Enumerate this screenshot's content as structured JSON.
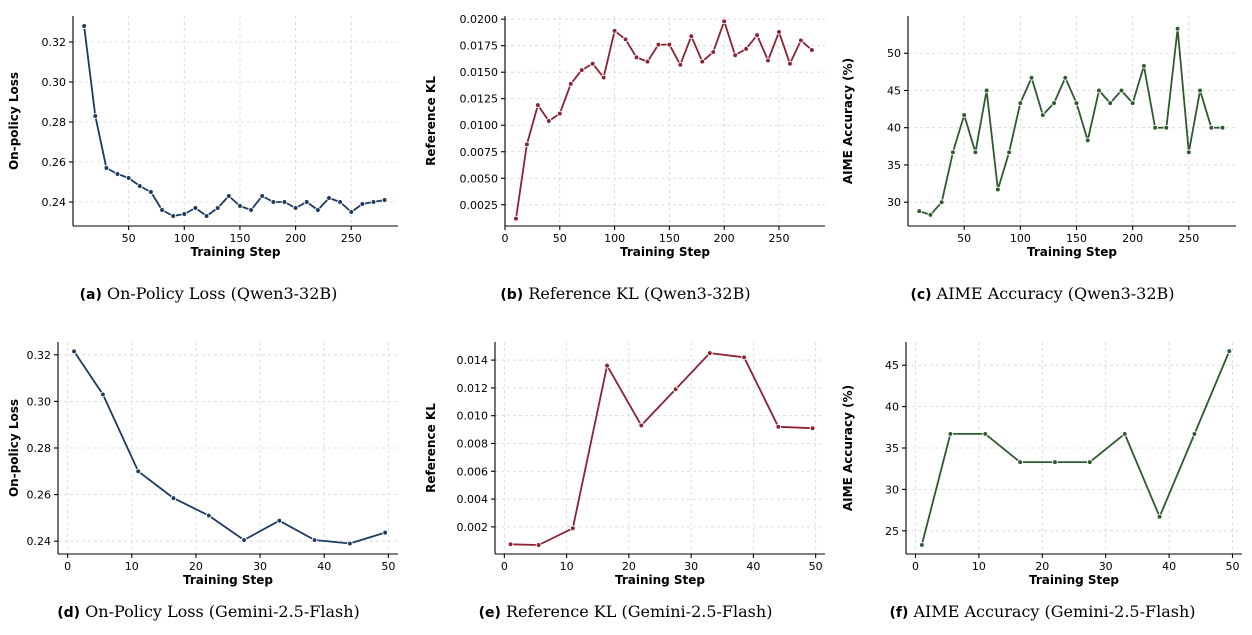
{
  "chart_data": [
    {
      "type": "line",
      "tag": "(a)",
      "caption": "On-Policy Loss (Qwen3-32B)",
      "xlabel": "Training Step",
      "ylabel": "On-policy Loss",
      "color": "#1f3a5f",
      "xlim": [
        0,
        292
      ],
      "ylim": [
        0.228,
        0.333
      ],
      "xticks": [
        50,
        100,
        150,
        200,
        250
      ],
      "yticks": [
        0.24,
        0.26,
        0.28,
        0.3,
        0.32
      ],
      "ytick_labels": [
        "0.24",
        "0.26",
        "0.28",
        "0.30",
        "0.32"
      ],
      "x": [
        10,
        20,
        30,
        40,
        50,
        60,
        70,
        80,
        90,
        100,
        110,
        120,
        130,
        140,
        150,
        160,
        170,
        180,
        190,
        200,
        210,
        220,
        230,
        240,
        250,
        260,
        270,
        280
      ],
      "y": [
        0.328,
        0.283,
        0.257,
        0.254,
        0.252,
        0.248,
        0.245,
        0.236,
        0.233,
        0.234,
        0.237,
        0.233,
        0.237,
        0.243,
        0.238,
        0.236,
        0.243,
        0.24,
        0.24,
        0.237,
        0.24,
        0.236,
        0.242,
        0.24,
        0.235,
        0.239,
        0.24,
        0.241
      ],
      "grid": true
    },
    {
      "type": "line",
      "tag": "(b)",
      "caption": "Reference KL (Qwen3-32B)",
      "xlabel": "Training Step",
      "ylabel": "Reference KL",
      "color": "#8b2332",
      "xlim": [
        0,
        292
      ],
      "ylim": [
        0.0005,
        0.0203
      ],
      "xticks": [
        0,
        50,
        100,
        150,
        200,
        250
      ],
      "yticks": [
        0.0025,
        0.005,
        0.0075,
        0.01,
        0.0125,
        0.015,
        0.0175,
        0.02
      ],
      "ytick_labels": [
        "0.0025",
        "0.0050",
        "0.0075",
        "0.0100",
        "0.0125",
        "0.0150",
        "0.0175",
        "0.0200"
      ],
      "x": [
        10,
        20,
        30,
        40,
        50,
        60,
        70,
        80,
        90,
        100,
        110,
        120,
        130,
        140,
        150,
        160,
        170,
        180,
        190,
        200,
        210,
        220,
        230,
        240,
        250,
        260,
        270,
        280
      ],
      "y": [
        0.0012,
        0.0082,
        0.0119,
        0.0104,
        0.0111,
        0.0139,
        0.0152,
        0.0158,
        0.0145,
        0.0189,
        0.0181,
        0.0164,
        0.016,
        0.0176,
        0.0176,
        0.0157,
        0.0184,
        0.016,
        0.0169,
        0.0198,
        0.0166,
        0.0172,
        0.0185,
        0.0161,
        0.0188,
        0.0158,
        0.018,
        0.0171
      ],
      "grid": true
    },
    {
      "type": "line",
      "tag": "(c)",
      "caption": "AIME Accuracy (Qwen3-32B)",
      "xlabel": "Training Step",
      "ylabel": "AIME Accuracy (%)",
      "color": "#2e5a2e",
      "xlim": [
        0,
        292
      ],
      "ylim": [
        26.8,
        55
      ],
      "xticks": [
        50,
        100,
        150,
        200,
        250
      ],
      "yticks": [
        30,
        35,
        40,
        45,
        50
      ],
      "ytick_labels": [
        "30",
        "35",
        "40",
        "45",
        "50"
      ],
      "x": [
        10,
        20,
        30,
        40,
        50,
        60,
        70,
        80,
        90,
        100,
        110,
        120,
        130,
        140,
        150,
        160,
        170,
        180,
        190,
        200,
        210,
        220,
        230,
        240,
        250,
        260,
        270,
        280
      ],
      "y": [
        28.8,
        28.3,
        30,
        36.7,
        41.7,
        36.7,
        45,
        31.7,
        36.7,
        43.3,
        46.7,
        41.7,
        43.3,
        46.7,
        43.3,
        38.3,
        45,
        43.3,
        45,
        43.3,
        48.3,
        40,
        40,
        53.3,
        36.7,
        45,
        40,
        40
      ],
      "grid": true
    },
    {
      "type": "line",
      "tag": "(d)",
      "caption": "On-Policy Loss (Gemini-2.5-Flash)",
      "xlabel": "Training Step",
      "ylabel": "On-policy Loss",
      "color": "#1f3a5f",
      "xlim": [
        -1.5,
        51.5
      ],
      "ylim": [
        0.2345,
        0.3255
      ],
      "xticks": [
        0,
        10,
        20,
        30,
        40,
        50
      ],
      "yticks": [
        0.24,
        0.26,
        0.28,
        0.3,
        0.32
      ],
      "ytick_labels": [
        "0.24",
        "0.26",
        "0.28",
        "0.30",
        "0.32"
      ],
      "x": [
        1,
        5.5,
        11,
        16.5,
        22,
        27.5,
        33,
        38.5,
        44,
        49.5
      ],
      "y": [
        0.3215,
        0.303,
        0.27,
        0.2585,
        0.251,
        0.2405,
        0.2488,
        0.2405,
        0.239,
        0.2437
      ],
      "grid": true
    },
    {
      "type": "line",
      "tag": "(e)",
      "caption": "Reference KL (Gemini-2.5-Flash)",
      "xlabel": "Training Step",
      "ylabel": "Reference KL",
      "color": "#8b2332",
      "xlim": [
        -1.5,
        51.5
      ],
      "ylim": [
        5e-05,
        0.0153
      ],
      "xticks": [
        0,
        10,
        20,
        30,
        40,
        50
      ],
      "yticks": [
        0.002,
        0.004,
        0.006,
        0.008,
        0.01,
        0.012,
        0.014
      ],
      "ytick_labels": [
        "0.002",
        "0.004",
        "0.006",
        "0.008",
        "0.010",
        "0.012",
        "0.014"
      ],
      "x": [
        1,
        5.5,
        11,
        16.5,
        22,
        27.5,
        33,
        38.5,
        44,
        49.5
      ],
      "y": [
        0.00075,
        0.0007,
        0.0019,
        0.0136,
        0.0093,
        0.0119,
        0.0145,
        0.0142,
        0.0092,
        0.0091
      ],
      "grid": true
    },
    {
      "type": "line",
      "tag": "(f)",
      "caption": "AIME Accuracy (Gemini-2.5-Flash)",
      "xlabel": "Training Step",
      "ylabel": "AIME Accuracy (%)",
      "color": "#2e5a2e",
      "xlim": [
        -1.5,
        51.5
      ],
      "ylim": [
        22.2,
        47.8
      ],
      "xticks": [
        0,
        10,
        20,
        30,
        40,
        50
      ],
      "yticks": [
        25,
        30,
        35,
        40,
        45
      ],
      "ytick_labels": [
        "25",
        "30",
        "35",
        "40",
        "45"
      ],
      "x": [
        1,
        5.5,
        11,
        16.5,
        22,
        27.5,
        33,
        38.5,
        44,
        49.5
      ],
      "y": [
        23.3,
        36.7,
        36.7,
        33.3,
        33.3,
        33.3,
        36.7,
        26.7,
        36.7,
        46.7
      ],
      "grid": true
    }
  ]
}
